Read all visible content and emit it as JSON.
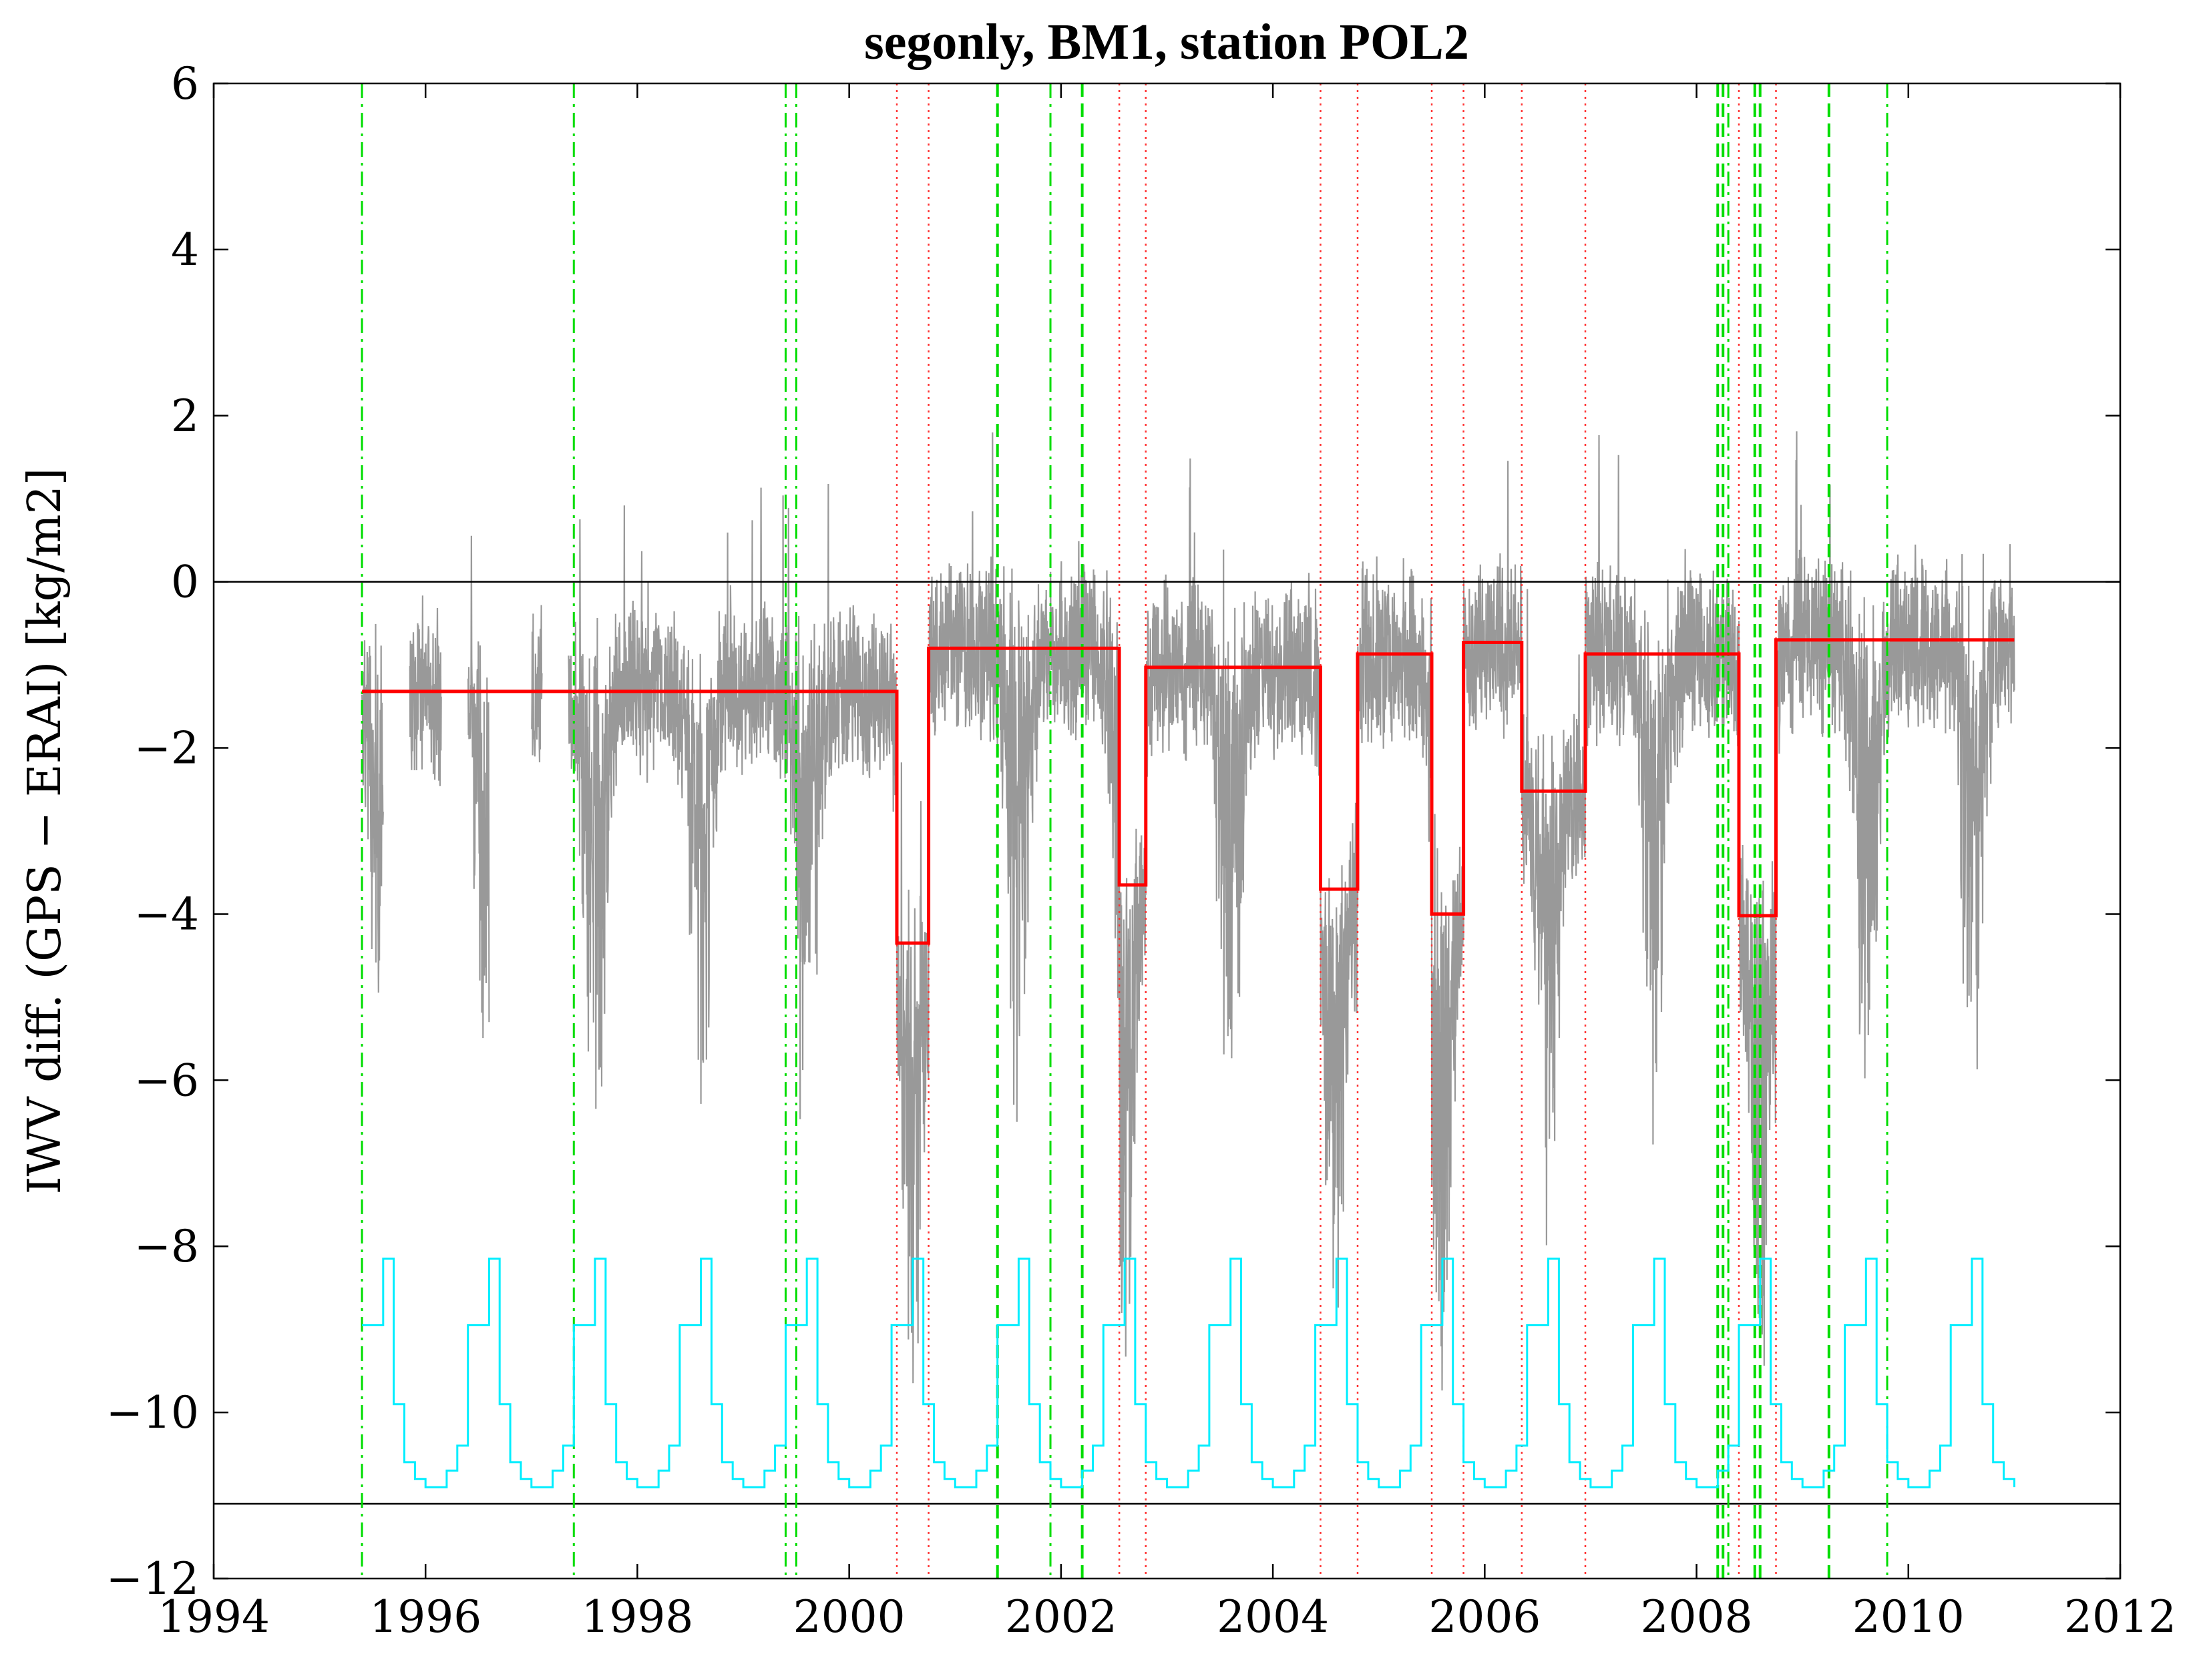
{
  "chart_data": {
    "type": "line",
    "title": "segonly, BM1, station POL2",
    "xlabel": "",
    "ylabel": "IWV diff. (GPS − ERAI) [kg/m2]",
    "xlim": [
      1994,
      2012
    ],
    "ylim": [
      -12,
      6
    ],
    "x_ticks": [
      1994,
      1996,
      1998,
      2000,
      2002,
      2004,
      2006,
      2008,
      2010,
      2012
    ],
    "y_ticks": [
      6,
      4,
      2,
      0,
      -2,
      -4,
      -6,
      -8,
      -10,
      -12
    ],
    "x_tick_labels": [
      "1994",
      "1996",
      "1998",
      "2000",
      "2002",
      "2004",
      "2006",
      "2008",
      "2010",
      "2012"
    ],
    "y_tick_labels": [
      "6",
      "4",
      "2",
      "0",
      "−2",
      "−4",
      "−6",
      "−8",
      "−10",
      "−12"
    ],
    "grid": false,
    "colors": {
      "raw": "#999999",
      "segments": "#ff0000",
      "seasonal": "#00eeff",
      "metadata": "#00dd00",
      "breakpoints": "#ff3333",
      "reference": "#000000"
    },
    "reference_lines": [
      0,
      -11.1
    ],
    "segments": [
      {
        "start": 1995.4,
        "end": 2000.45,
        "mean": -1.32
      },
      {
        "start": 2000.45,
        "end": 2000.75,
        "mean": -4.35
      },
      {
        "start": 2000.75,
        "end": 2002.55,
        "mean": -0.8
      },
      {
        "start": 2002.55,
        "end": 2002.8,
        "mean": -3.65
      },
      {
        "start": 2002.8,
        "end": 2004.45,
        "mean": -1.03
      },
      {
        "start": 2004.45,
        "end": 2004.8,
        "mean": -3.7
      },
      {
        "start": 2004.8,
        "end": 2005.5,
        "mean": -0.87
      },
      {
        "start": 2005.5,
        "end": 2005.8,
        "mean": -4.0
      },
      {
        "start": 2005.8,
        "end": 2006.35,
        "mean": -0.73
      },
      {
        "start": 2006.35,
        "end": 2006.95,
        "mean": -2.52
      },
      {
        "start": 2006.95,
        "end": 2008.4,
        "mean": -0.87
      },
      {
        "start": 2008.4,
        "end": 2008.75,
        "mean": -4.02
      },
      {
        "start": 2008.75,
        "end": 2011.0,
        "mean": -0.7
      }
    ],
    "breakpoints": [
      2000.45,
      2000.75,
      2002.55,
      2002.8,
      2004.45,
      2004.8,
      2005.5,
      2005.8,
      2006.35,
      2006.95,
      2008.4,
      2008.75
    ],
    "metadata_events_dashdot": [
      1995.4,
      1997.4,
      1999.4,
      1999.5,
      2001.9,
      2008.3,
      2009.8
    ],
    "metadata_events_dashed": [
      2001.4,
      2002.2,
      2008.2,
      2008.25,
      2008.55,
      2008.6,
      2009.25
    ],
    "seasonal_cycle": {
      "x": [
        1995.4,
        1995.5,
        1995.6,
        1995.7,
        1995.8,
        1995.9,
        1996.0,
        1996.1,
        1996.2,
        1996.3,
        1996.4,
        1996.5,
        1996.6,
        1996.7,
        1996.8,
        1996.9,
        1997.0,
        1997.1,
        1997.2,
        1997.3,
        1997.4,
        1997.5,
        1997.6
      ],
      "y": [
        -8.95,
        -8.95,
        -8.15,
        -9.9,
        -10.6,
        -10.8,
        -10.9,
        -10.9,
        -10.7,
        -10.4,
        -8.95,
        -8.95,
        -8.15,
        -9.9,
        -10.6,
        -10.8,
        -10.9,
        -10.9,
        -10.7,
        -10.4,
        -8.95,
        -8.95,
        -8.15
      ],
      "range": [
        1995.4,
        2011.0
      ]
    },
    "raw_series": {
      "start": 1995.4,
      "end": 2011.0,
      "gaps": [
        [
          1995.6,
          1995.85
        ],
        [
          1996.15,
          1996.4
        ],
        [
          1996.6,
          1997.0
        ],
        [
          1997.1,
          1997.35
        ]
      ]
    }
  }
}
